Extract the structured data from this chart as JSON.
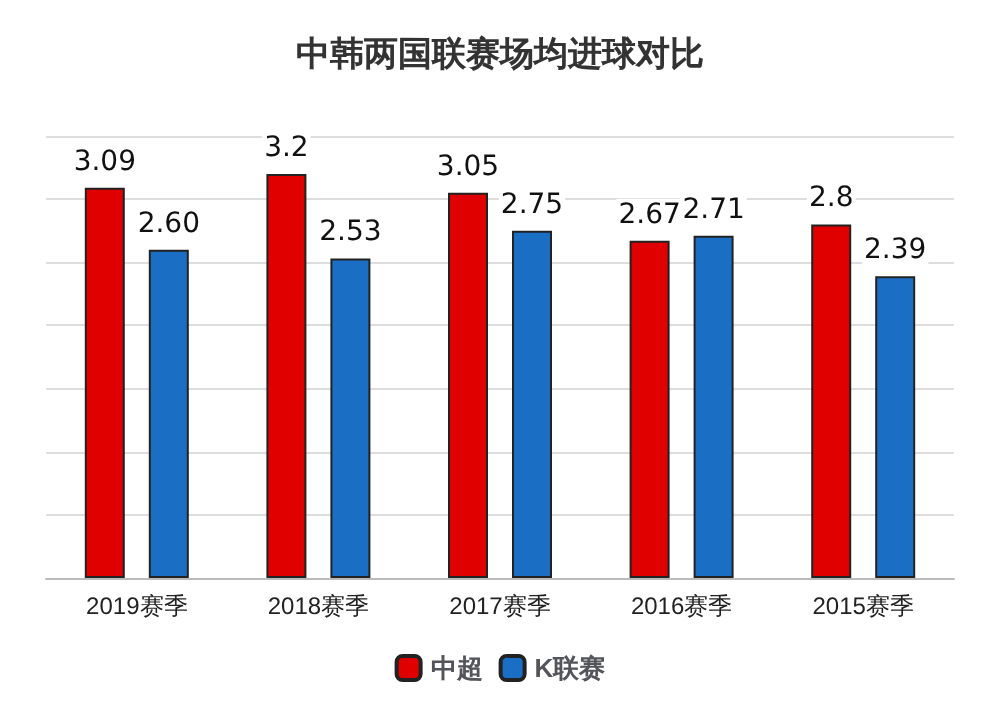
{
  "chart_data": {
    "type": "bar",
    "title": "中韩两国联赛场均进球对比",
    "categories": [
      "2019赛季",
      "2018赛季",
      "2017赛季",
      "2016赛季",
      "2015赛季"
    ],
    "series": [
      {
        "name": "中超",
        "color": "#e00000",
        "values": [
          3.09,
          3.2,
          3.05,
          2.67,
          2.8
        ]
      },
      {
        "name": "K联赛",
        "color": "#1a6fc4",
        "values": [
          2.6,
          2.53,
          2.75,
          2.71,
          2.39
        ],
        "value_labels": [
          "2.60",
          "2.53",
          "2.75",
          "2.71",
          "2.39"
        ]
      }
    ],
    "data_labels": true,
    "ylim": [
      0,
      3.5
    ],
    "yticks": [
      {
        "value": 0,
        "label": null
      },
      {
        "value": 0.5,
        "label": null
      },
      {
        "value": 1,
        "label": null
      },
      {
        "value": 1.5,
        "label": null
      },
      {
        "value": 2,
        "label": null
      },
      {
        "value": 2.5,
        "label": null
      },
      {
        "value": 3,
        "label": null
      },
      {
        "value": 3.5,
        "label": null
      }
    ],
    "tick_labels": "x",
    "grid": "y",
    "legend": "bottom"
  }
}
